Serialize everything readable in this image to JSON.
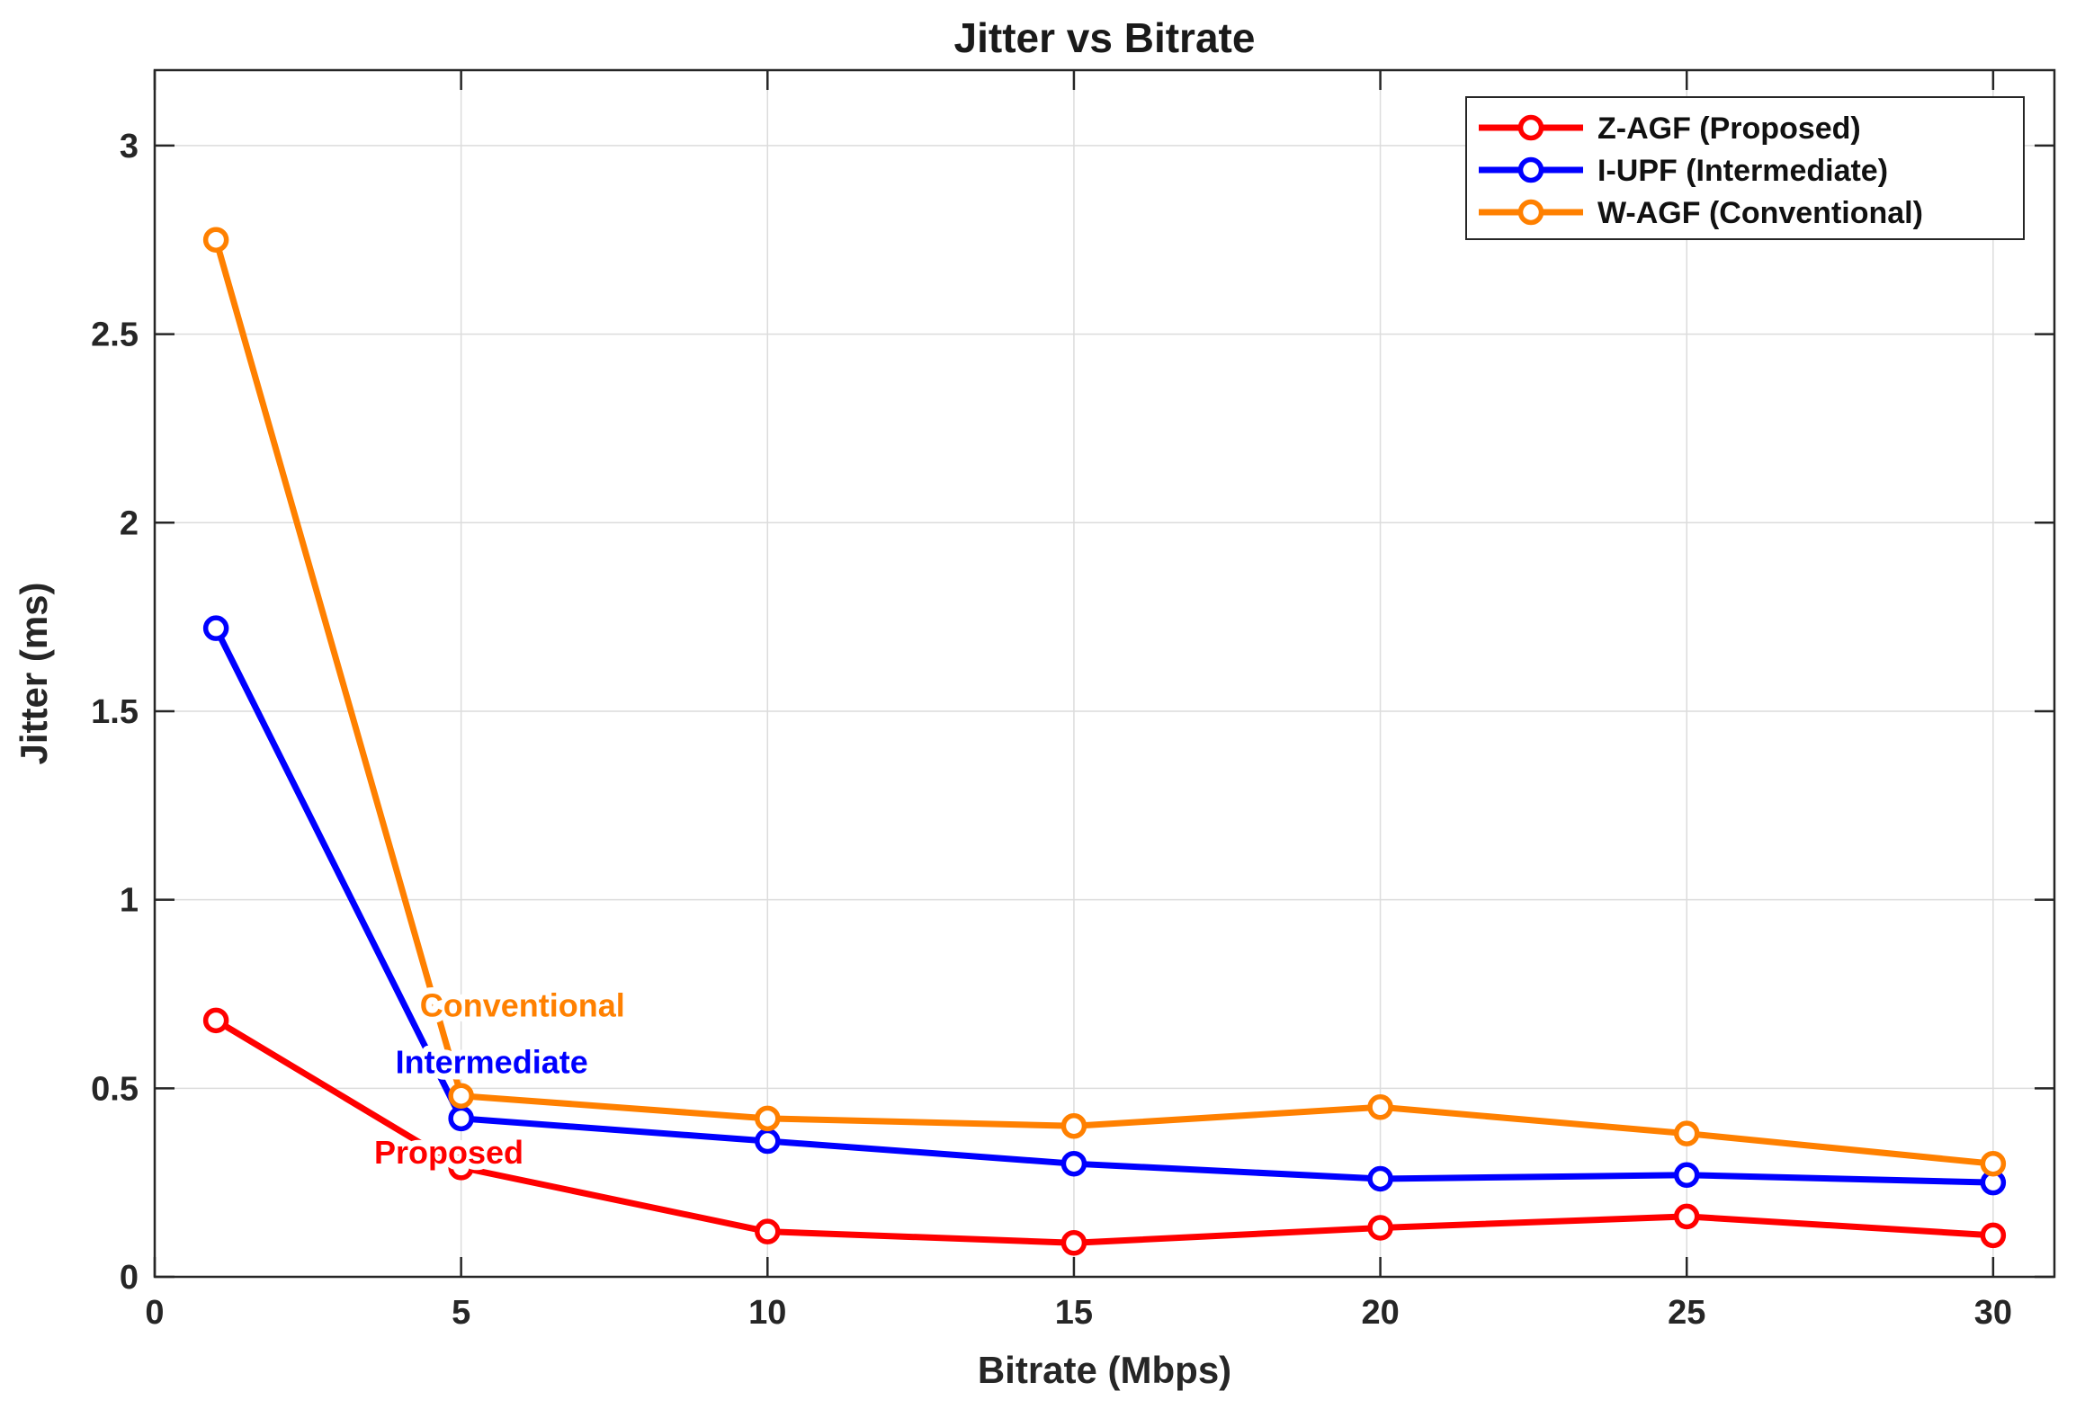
{
  "chart_data": {
    "type": "line",
    "title": "Jitter vs Bitrate",
    "xlabel": "Bitrate (Mbps)",
    "ylabel": "Jitter (ms)",
    "xlim": [
      0,
      31
    ],
    "ylim": [
      0,
      3.2
    ],
    "x_ticks": [
      0,
      5,
      10,
      15,
      20,
      25,
      30
    ],
    "x_tick_labels": [
      "0",
      "5",
      "10",
      "15",
      "20",
      "25",
      "30"
    ],
    "y_ticks": [
      0,
      0.5,
      1,
      1.5,
      2,
      2.5,
      3
    ],
    "y_tick_labels": [
      "0",
      "0.5",
      "1",
      "1.5",
      "2",
      "2.5",
      "3"
    ],
    "grid": true,
    "legend_position": "top-right",
    "x": [
      1,
      5,
      10,
      15,
      20,
      25,
      30
    ],
    "series": [
      {
        "name": "Z-AGF (Proposed)",
        "color": "#ff0000",
        "values": [
          0.68,
          0.29,
          0.12,
          0.09,
          0.13,
          0.16,
          0.11
        ]
      },
      {
        "name": "I-UPF (Intermediate)",
        "color": "#0000ff",
        "values": [
          1.72,
          0.42,
          0.36,
          0.3,
          0.26,
          0.27,
          0.25
        ]
      },
      {
        "name": " W-AGF (Conventional)",
        "color": "#ff8000",
        "values": [
          2.75,
          0.48,
          0.42,
          0.4,
          0.45,
          0.38,
          0.3
        ]
      }
    ],
    "annotations": [
      {
        "text": "Conventional",
        "color": "#ff8000",
        "x": 6.0,
        "y": 0.69
      },
      {
        "text": "Intermediate",
        "color": "#0000ff",
        "x": 5.5,
        "y": 0.54
      },
      {
        "text": "Proposed",
        "color": "#ff0000",
        "x": 4.8,
        "y": 0.3
      }
    ]
  }
}
